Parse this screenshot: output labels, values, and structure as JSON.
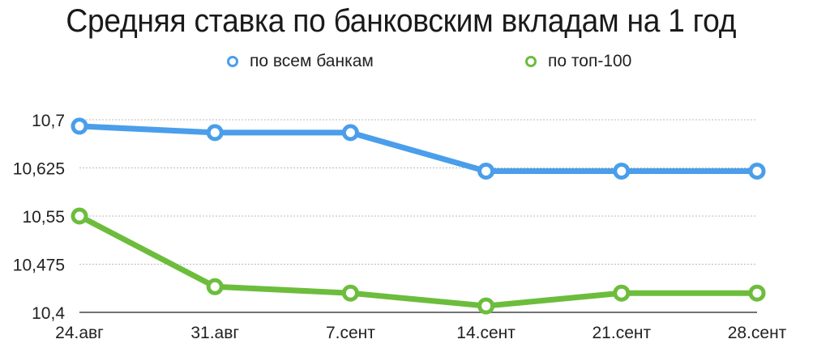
{
  "chart_data": {
    "type": "line",
    "title": "Средняя ставка по банковским вкладам на 1 год",
    "xlabel": "",
    "ylabel": "",
    "categories": [
      "24.авг",
      "31.авг",
      "7.сент",
      "14.сент",
      "21.сент",
      "28.сент"
    ],
    "y_ticks": [
      "10,4",
      "10,475",
      "10,55",
      "10,625",
      "10,7"
    ],
    "y_tick_values": [
      10.4,
      10.475,
      10.55,
      10.625,
      10.7
    ],
    "ylim": [
      10.4,
      10.7
    ],
    "grid": "horizontal dotted",
    "legend_position": "top",
    "series": [
      {
        "name": "по всем банкам",
        "color": "#4a9eea",
        "values": [
          10.69,
          10.68,
          10.68,
          10.62,
          10.62,
          10.62
        ]
      },
      {
        "name": "по топ-100",
        "color": "#6cbd3c",
        "values": [
          10.55,
          10.44,
          10.43,
          10.41,
          10.43,
          10.43
        ]
      }
    ]
  },
  "legend": {
    "items": [
      {
        "label": "по всем банкам",
        "color": "#4a9eea"
      },
      {
        "label": "по топ-100",
        "color": "#6cbd3c"
      }
    ]
  }
}
